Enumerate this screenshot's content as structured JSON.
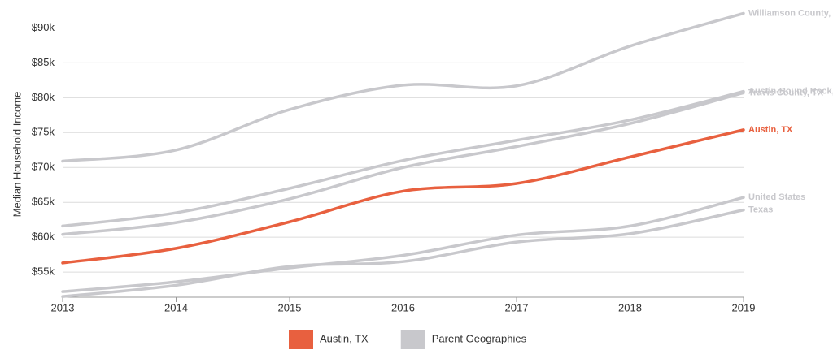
{
  "chart_data": {
    "type": "line",
    "y_label": "Median Household Income",
    "x": [
      2013,
      2014,
      2015,
      2016,
      2017,
      2018,
      2019
    ],
    "xlim": [
      2013,
      2019
    ],
    "xticks": [
      2013,
      2014,
      2015,
      2016,
      2017,
      2018,
      2019
    ],
    "ylim": [
      51.4,
      92.5
    ],
    "yticks": [
      {
        "value": 55,
        "label": "$55k"
      },
      {
        "value": 60,
        "label": "$60k"
      },
      {
        "value": 65,
        "label": "$65k"
      },
      {
        "value": 70,
        "label": "$70k"
      },
      {
        "value": 75,
        "label": "$75k"
      },
      {
        "value": 80,
        "label": "$80k"
      },
      {
        "value": 85,
        "label": "$85k"
      },
      {
        "value": 90,
        "label": "$90k"
      }
    ],
    "grid": true,
    "series": [
      {
        "name": "Williamson County, TX",
        "color": "#c8c8cc",
        "values": [
          70.9,
          72.5,
          78.3,
          81.8,
          81.7,
          87.4,
          92.1
        ]
      },
      {
        "name": "Austin-Round Rock, TX",
        "color": "#c8c8cc",
        "values": [
          61.6,
          63.5,
          67.0,
          71.0,
          73.9,
          76.8,
          80.9
        ]
      },
      {
        "name": "Travis County, TX",
        "color": "#c8c8cc",
        "values": [
          60.4,
          62.1,
          65.5,
          70.0,
          73.0,
          76.3,
          80.7
        ]
      },
      {
        "name": "United States",
        "color": "#c8c8cc",
        "values": [
          52.2,
          53.6,
          55.6,
          57.4,
          60.3,
          61.6,
          65.7
        ]
      },
      {
        "name": "Texas",
        "color": "#c8c8cc",
        "values": [
          51.5,
          53.1,
          55.8,
          56.5,
          59.3,
          60.5,
          63.9
        ]
      },
      {
        "name": "Austin, TX",
        "color": "#e8603f",
        "values": [
          56.3,
          58.4,
          62.2,
          66.6,
          67.7,
          71.5,
          75.4
        ]
      }
    ],
    "legend": [
      {
        "label": "Austin, TX",
        "color": "#e8603f"
      },
      {
        "label": "Parent Geographies",
        "color": "#c8c8cc"
      }
    ]
  }
}
